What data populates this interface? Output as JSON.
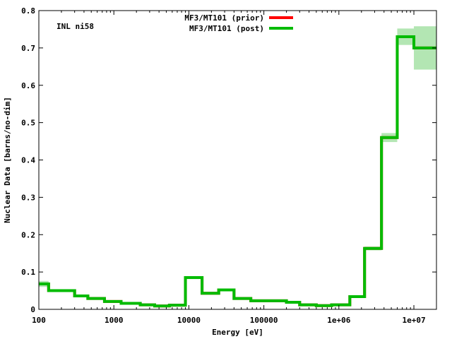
{
  "chart_data": {
    "type": "line",
    "step": true,
    "xscale": "log",
    "xlim": [
      100,
      20000000
    ],
    "ylim": [
      0,
      0.8
    ],
    "xlabel": "Energy [eV]",
    "ylabel": "Nuclear Data [barns/no-dim]",
    "annotation": "INL ni58",
    "legend_position": "top-center",
    "x_ticks": [
      {
        "value": 100,
        "label": "100"
      },
      {
        "value": 1000,
        "label": "1000"
      },
      {
        "value": 10000,
        "label": "10000"
      },
      {
        "value": 100000,
        "label": "100000"
      },
      {
        "value": 1000000,
        "label": "1e+06"
      },
      {
        "value": 10000000,
        "label": "1e+07"
      }
    ],
    "y_ticks": [
      {
        "value": 0,
        "label": "0"
      },
      {
        "value": 0.1,
        "label": "0.1"
      },
      {
        "value": 0.2,
        "label": "0.2"
      },
      {
        "value": 0.3,
        "label": "0.3"
      },
      {
        "value": 0.4,
        "label": "0.4"
      },
      {
        "value": 0.5,
        "label": "0.5"
      },
      {
        "value": 0.6,
        "label": "0.6"
      },
      {
        "value": 0.7,
        "label": "0.7"
      },
      {
        "value": 0.8,
        "label": "0.8"
      }
    ],
    "bin_edges": [
      100,
      135,
      300,
      450,
      750,
      1250,
      2250,
      3500,
      5500,
      9000,
      15000,
      25000,
      40000,
      67000,
      120000,
      200000,
      300000,
      500000,
      800000,
      1400000,
      2200000,
      3700000,
      6000000,
      10000000,
      20000000
    ],
    "series": [
      {
        "name": "MF3/MT101 (prior)",
        "color": "#ff0000",
        "values": [
          0.068,
          0.05,
          0.036,
          0.029,
          0.021,
          0.016,
          0.012,
          0.009,
          0.011,
          0.085,
          0.043,
          0.052,
          0.029,
          0.023,
          0.023,
          0.019,
          0.012,
          0.01,
          0.012,
          0.034,
          0.163,
          0.46,
          0.73,
          0.7
        ]
      },
      {
        "name": "MF3/MT101 (post)",
        "color": "#00bb00",
        "values": [
          0.068,
          0.05,
          0.036,
          0.029,
          0.021,
          0.016,
          0.012,
          0.009,
          0.011,
          0.085,
          0.043,
          0.052,
          0.029,
          0.023,
          0.023,
          0.019,
          0.012,
          0.01,
          0.012,
          0.034,
          0.163,
          0.46,
          0.73,
          0.7
        ]
      }
    ],
    "uncertainty_color": "#b3e6b3",
    "uncertainty_band": {
      "lower": [
        0.06,
        0.047,
        0.034,
        0.027,
        0.019,
        0.014,
        0.011,
        0.008,
        0.01,
        0.081,
        0.041,
        0.049,
        0.027,
        0.021,
        0.021,
        0.017,
        0.011,
        0.009,
        0.011,
        0.032,
        0.158,
        0.448,
        0.708,
        0.642
      ],
      "upper": [
        0.076,
        0.053,
        0.038,
        0.031,
        0.023,
        0.018,
        0.013,
        0.01,
        0.012,
        0.089,
        0.045,
        0.055,
        0.031,
        0.025,
        0.025,
        0.021,
        0.013,
        0.011,
        0.013,
        0.036,
        0.168,
        0.472,
        0.752,
        0.758
      ]
    }
  }
}
